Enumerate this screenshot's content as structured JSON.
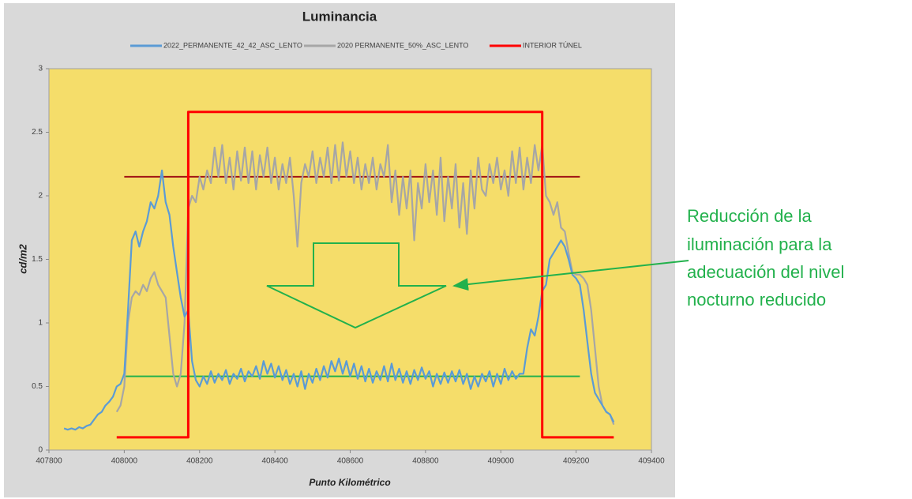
{
  "chart_data": {
    "type": "line",
    "title": "Luminancia",
    "x_label": "Punto Kilométrico",
    "y_label": "cd/m2",
    "xlim": [
      407800,
      409400
    ],
    "xticks": [
      407800,
      408000,
      408200,
      408400,
      408600,
      408800,
      409000,
      409200,
      409400
    ],
    "ylim": [
      0,
      3
    ],
    "yticks": [
      0,
      0.5,
      1,
      1.5,
      2,
      2.5,
      3
    ],
    "grid": false,
    "legend": "top",
    "x": [
      407840,
      407850,
      407860,
      407870,
      407880,
      407890,
      407900,
      407910,
      407920,
      407930,
      407940,
      407950,
      407960,
      407970,
      407980,
      407990,
      408000,
      408010,
      408020,
      408030,
      408040,
      408050,
      408060,
      408070,
      408080,
      408090,
      408100,
      408110,
      408120,
      408130,
      408140,
      408150,
      408160,
      408170,
      408180,
      408190,
      408200,
      408210,
      408220,
      408230,
      408240,
      408250,
      408260,
      408270,
      408280,
      408290,
      408300,
      408310,
      408320,
      408330,
      408340,
      408350,
      408360,
      408370,
      408380,
      408390,
      408400,
      408410,
      408420,
      408430,
      408440,
      408450,
      408460,
      408470,
      408480,
      408490,
      408500,
      408510,
      408520,
      408530,
      408540,
      408550,
      408560,
      408570,
      408580,
      408590,
      408600,
      408610,
      408620,
      408630,
      408640,
      408650,
      408660,
      408670,
      408680,
      408690,
      408700,
      408710,
      408720,
      408730,
      408740,
      408750,
      408760,
      408770,
      408780,
      408790,
      408800,
      408810,
      408820,
      408830,
      408840,
      408850,
      408860,
      408870,
      408880,
      408890,
      408900,
      408910,
      408920,
      408930,
      408940,
      408950,
      408960,
      408970,
      408980,
      408990,
      409000,
      409010,
      409020,
      409030,
      409040,
      409050,
      409060,
      409070,
      409080,
      409090,
      409100,
      409110,
      409120,
      409130,
      409140,
      409150,
      409160,
      409170,
      409180,
      409190,
      409200,
      409210,
      409220,
      409230,
      409240,
      409250,
      409260,
      409270,
      409280,
      409290,
      409300
    ],
    "series": [
      {
        "name": "2022_PERMANENTE_42_42_ASC_LENTO",
        "color": "#5b9bd5",
        "values": [
          0.17,
          0.16,
          0.17,
          0.16,
          0.18,
          0.17,
          0.19,
          0.2,
          0.24,
          0.28,
          0.3,
          0.35,
          0.38,
          0.42,
          0.5,
          0.52,
          0.6,
          1.1,
          1.65,
          1.72,
          1.6,
          1.72,
          1.8,
          1.95,
          1.9,
          2.0,
          2.2,
          1.95,
          1.85,
          1.6,
          1.4,
          1.2,
          1.05,
          1.1,
          0.7,
          0.55,
          0.5,
          0.58,
          0.52,
          0.62,
          0.53,
          0.6,
          0.55,
          0.63,
          0.52,
          0.6,
          0.56,
          0.64,
          0.54,
          0.62,
          0.58,
          0.66,
          0.56,
          0.7,
          0.6,
          0.68,
          0.57,
          0.66,
          0.55,
          0.63,
          0.52,
          0.6,
          0.5,
          0.62,
          0.48,
          0.6,
          0.53,
          0.64,
          0.55,
          0.66,
          0.57,
          0.7,
          0.62,
          0.72,
          0.6,
          0.7,
          0.58,
          0.68,
          0.56,
          0.66,
          0.54,
          0.64,
          0.53,
          0.62,
          0.55,
          0.66,
          0.54,
          0.68,
          0.55,
          0.64,
          0.53,
          0.62,
          0.52,
          0.63,
          0.55,
          0.65,
          0.56,
          0.62,
          0.5,
          0.6,
          0.52,
          0.61,
          0.53,
          0.62,
          0.54,
          0.63,
          0.52,
          0.6,
          0.48,
          0.58,
          0.5,
          0.6,
          0.54,
          0.62,
          0.5,
          0.6,
          0.52,
          0.64,
          0.55,
          0.62,
          0.56,
          0.6,
          0.6,
          0.8,
          0.95,
          0.9,
          1.05,
          1.25,
          1.3,
          1.5,
          1.55,
          1.6,
          1.65,
          1.6,
          1.5,
          1.38,
          1.35,
          1.3,
          1.1,
          0.85,
          0.6,
          0.45,
          0.4,
          0.35,
          0.3,
          0.28,
          0.22
        ]
      },
      {
        "name": "2020 PERMANENTE_50%_ASC_LENTO",
        "color": "#a6a6a6",
        "values": [
          null,
          null,
          null,
          null,
          null,
          null,
          null,
          null,
          null,
          null,
          null,
          null,
          null,
          null,
          0.3,
          0.35,
          0.5,
          1.0,
          1.2,
          1.25,
          1.22,
          1.3,
          1.25,
          1.35,
          1.4,
          1.3,
          1.25,
          1.2,
          0.9,
          0.6,
          0.5,
          0.6,
          1.0,
          1.9,
          2.0,
          1.95,
          2.15,
          2.05,
          2.2,
          2.1,
          2.38,
          2.15,
          2.4,
          2.1,
          2.3,
          2.05,
          2.35,
          2.12,
          2.38,
          2.1,
          2.35,
          2.05,
          2.32,
          2.15,
          2.38,
          2.1,
          2.3,
          2.05,
          2.25,
          2.1,
          2.3,
          2.0,
          1.6,
          2.1,
          2.25,
          2.15,
          2.35,
          2.1,
          2.3,
          2.15,
          2.38,
          2.1,
          2.4,
          2.12,
          2.42,
          2.15,
          2.35,
          2.1,
          2.3,
          2.05,
          2.25,
          2.1,
          2.3,
          2.05,
          2.25,
          2.15,
          2.4,
          1.95,
          2.2,
          1.85,
          2.15,
          1.9,
          2.2,
          1.65,
          2.1,
          1.9,
          2.25,
          1.95,
          2.2,
          1.85,
          2.3,
          1.8,
          2.15,
          1.9,
          2.25,
          1.75,
          2.1,
          1.7,
          2.2,
          1.9,
          2.3,
          2.05,
          2.0,
          2.25,
          2.1,
          2.3,
          2.05,
          2.2,
          2.0,
          2.35,
          2.1,
          2.38,
          2.05,
          2.3,
          2.1,
          2.4,
          2.2,
          2.4,
          2.0,
          1.95,
          1.85,
          1.95,
          1.75,
          1.72,
          1.55,
          1.4,
          1.38,
          1.38,
          1.35,
          1.3,
          1.1,
          0.8,
          0.5,
          0.35,
          0.3,
          0.28,
          0.2
        ]
      },
      {
        "name": "INTERIOR TÚNEL",
        "color": "#ff0000",
        "x": [
          407980,
          408170,
          408170,
          409110,
          409110,
          409300
        ],
        "values": [
          0.1,
          0.1,
          2.66,
          2.66,
          0.1,
          0.1
        ]
      }
    ],
    "reference_lines": [
      {
        "value": 2.15,
        "x": [
          408000,
          409210
        ],
        "color": "#a01414"
      },
      {
        "value": 0.58,
        "x": [
          408000,
          409210
        ],
        "color": "#22b14c"
      }
    ],
    "annotation": [
      "Reducción de la",
      "iluminación para la",
      "adecuación del nivel",
      "nocturno reducido"
    ]
  }
}
